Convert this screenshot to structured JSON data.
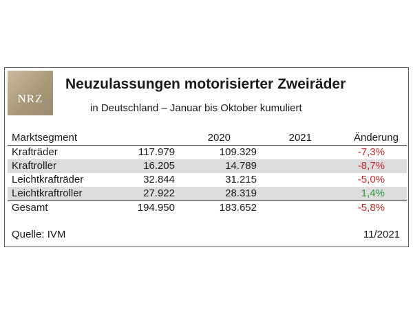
{
  "header": {
    "logo_text": "NRZ",
    "title": "Neuzulassungen motorisierter Zweiräder",
    "subtitle": "in Deutschland – Januar bis Oktober kumuliert"
  },
  "chart_data": {
    "type": "table",
    "title": "Neuzulassungen motorisierter Zweiräder",
    "subtitle": "in Deutschland – Januar bis Oktober kumuliert",
    "columns": [
      "Marktsegment",
      "2020",
      "2021",
      "Änderung"
    ],
    "rows": [
      {
        "segment": "Krafträder",
        "y2020": "117.979",
        "y2021": "109.329",
        "change": "-7,3%",
        "trend": "neg"
      },
      {
        "segment": "Kraftroller",
        "y2020": "16.205",
        "y2021": "14.789",
        "change": "-8,7%",
        "trend": "neg"
      },
      {
        "segment": "Leichtkrafträder",
        "y2020": "32.844",
        "y2021": "31.215",
        "change": "-5,0%",
        "trend": "neg"
      },
      {
        "segment": "Leichtkraftroller",
        "y2020": "27.922",
        "y2021": "28.319",
        "change": "1,4%",
        "trend": "pos"
      }
    ],
    "total": {
      "segment": "Gesamt",
      "y2020": "194.950",
      "y2021": "183.652",
      "change": "-5,8%",
      "trend": "neg"
    }
  },
  "footer": {
    "source": "Quelle: IVM",
    "date": "11/2021"
  },
  "colors": {
    "negative": "#c62a2a",
    "positive": "#2e9a3a",
    "stripe": "#dcdcdc",
    "logo": "#b3a383"
  }
}
